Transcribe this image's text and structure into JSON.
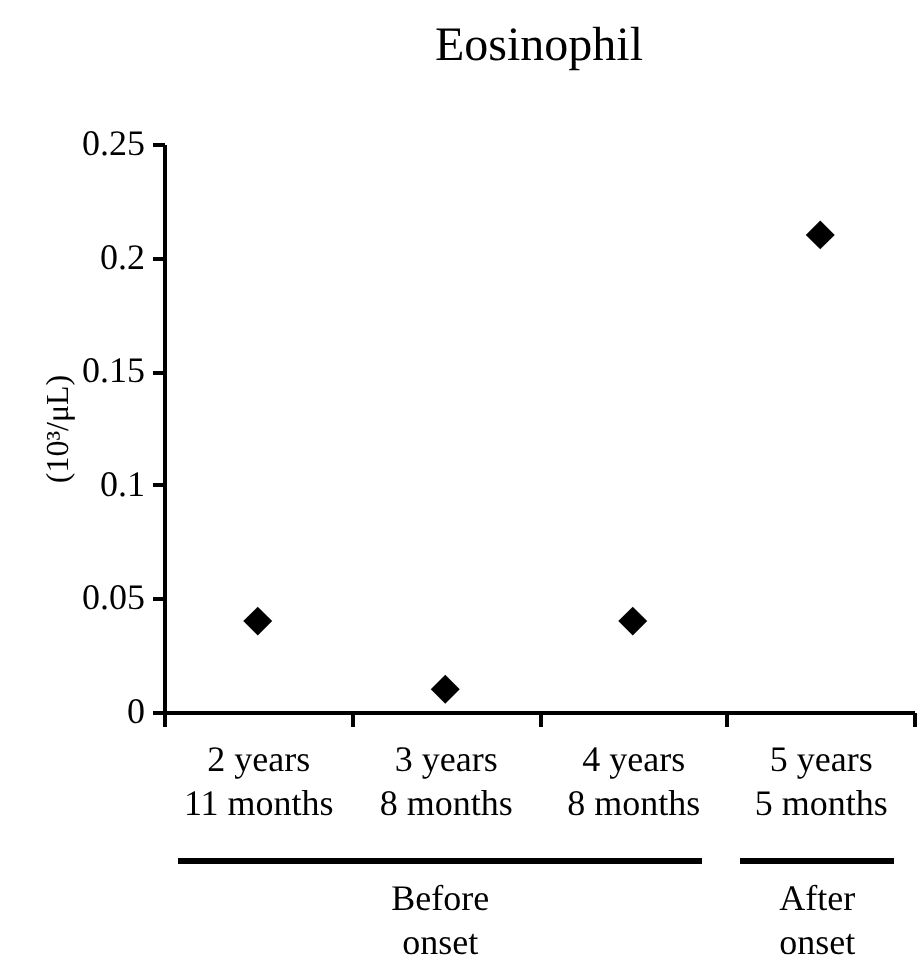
{
  "chart_data": {
    "type": "scatter",
    "title": "Eosinophil",
    "ylabel": "(10³/μL)",
    "categories": [
      "2 years\n11 months",
      "3 years\n8 months",
      "4 years\n8 months",
      "5 years\n5 months"
    ],
    "values": [
      0.04,
      0.01,
      0.04,
      0.21
    ],
    "color": "#000000",
    "marker": "diamond",
    "ylim": [
      0,
      0.25
    ],
    "yticks": [
      0,
      0.05,
      0.1,
      0.15,
      0.2,
      0.25
    ],
    "grid": false,
    "annotations": [
      "Before onset",
      "After onset"
    ]
  }
}
